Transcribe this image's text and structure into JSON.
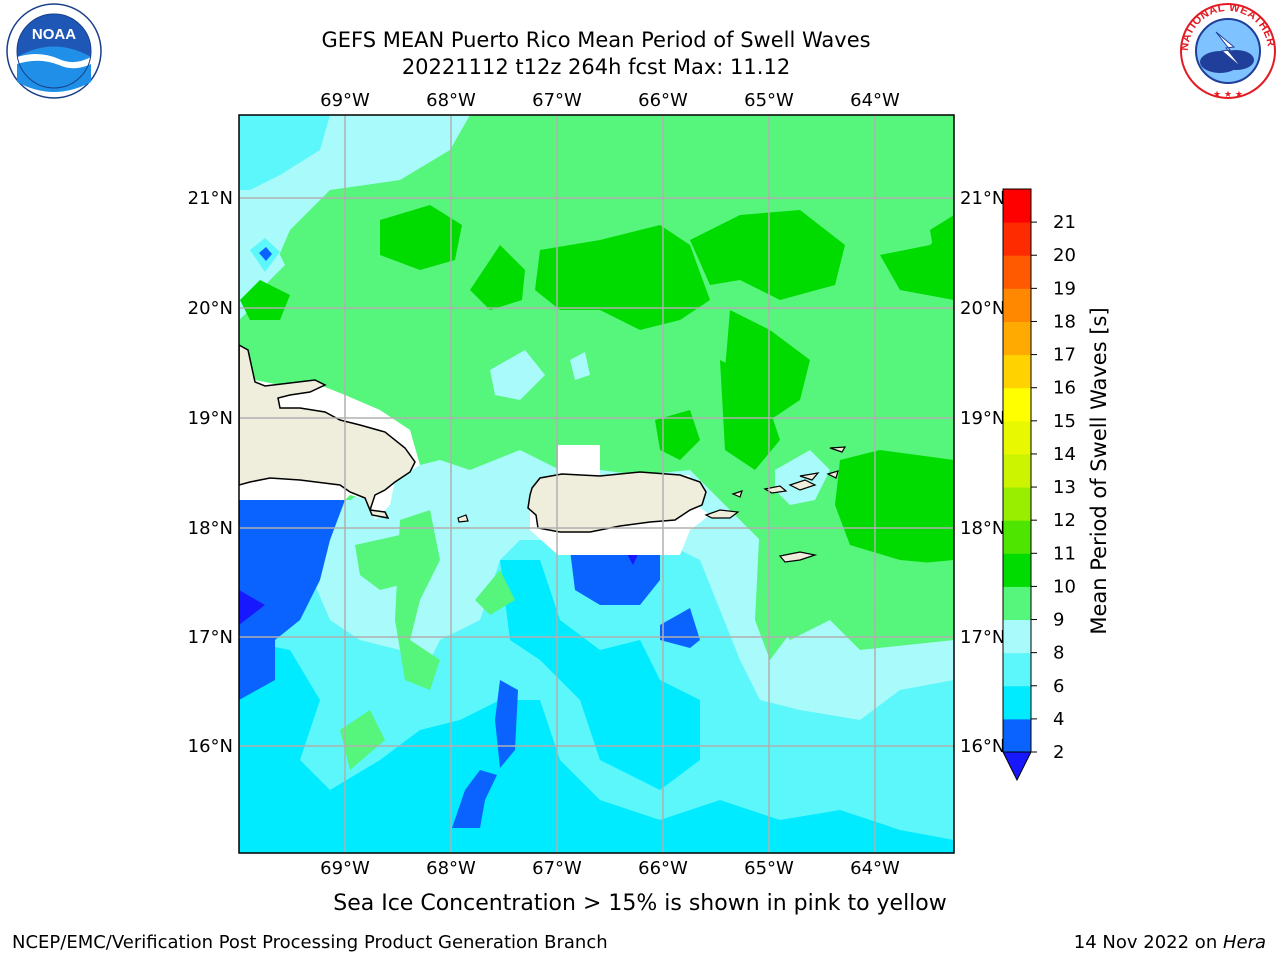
{
  "header": {
    "title_line1": "GEFS MEAN Puerto Rico Mean Period of Swell Waves",
    "title_line2": "20221112 t12z 264h fcst   Max: 11.12"
  },
  "map": {
    "lon_labels": [
      "69°W",
      "68°W",
      "67°W",
      "66°W",
      "65°W",
      "64°W"
    ],
    "lat_labels": [
      "21°N",
      "20°N",
      "19°N",
      "18°N",
      "17°N",
      "16°N"
    ],
    "land_color": "#efeddc",
    "grid_color": "#b0b0b0"
  },
  "colorbar": {
    "label": "Mean Period of Swell Waves [s]",
    "ticks": [
      "2",
      "4",
      "6",
      "8",
      "9",
      "10",
      "11",
      "12",
      "13",
      "14",
      "15",
      "16",
      "17",
      "18",
      "19",
      "20",
      "21"
    ],
    "colors": [
      "#0a63ff",
      "#00ebff",
      "#5bf7fb",
      "#a8fbfa",
      "#56f57b",
      "#00dc00",
      "#4ee600",
      "#99ee00",
      "#ccf400",
      "#e8f800",
      "#ffff00",
      "#ffd200",
      "#ffaa00",
      "#ff8800",
      "#ff5a00",
      "#ff2b00",
      "#ff0000"
    ],
    "under_color": "#1818ff"
  },
  "subtitle": "Sea Ice Concentration > 15% is shown in pink to yellow",
  "footer": {
    "left": "NCEP/EMC/Verification Post Processing Product Generation Branch",
    "right_date": "14 Nov 2022 on ",
    "right_host": "Hera"
  },
  "logos": {
    "noaa_text": "NOAA",
    "nws_text": "NATIONAL WEATHER SERVICE"
  }
}
